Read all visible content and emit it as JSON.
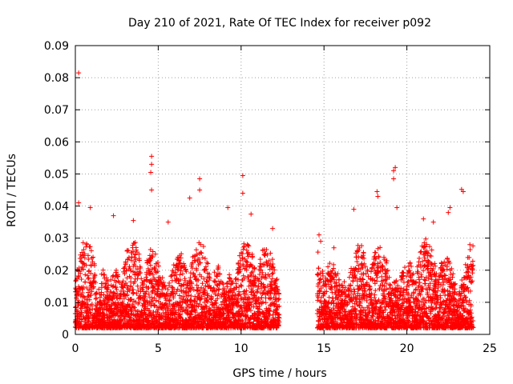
{
  "chart_data": {
    "type": "scatter",
    "title": "Day 210 of 2021, Rate Of TEC Index for receiver p092",
    "xlabel": "GPS time / hours",
    "ylabel": "ROTI / TECUs",
    "xlim": [
      0,
      25
    ],
    "ylim": [
      0,
      0.09
    ],
    "xticks": [
      0,
      5,
      10,
      15,
      20,
      25
    ],
    "yticks": [
      0,
      0.01,
      0.02,
      0.03,
      0.04,
      0.05,
      0.06,
      0.07,
      0.08,
      0.09
    ],
    "xtick_labels": [
      "0",
      "5",
      "10",
      "15",
      "20",
      "25"
    ],
    "ytick_labels": [
      "0",
      "0.01",
      "0.02",
      "0.03",
      "0.04",
      "0.05",
      "0.06",
      "0.07",
      "0.08",
      "0.09"
    ],
    "grid": true,
    "marker": "+",
    "color": "#ff0000",
    "data_gap": [
      12.3,
      14.6
    ],
    "notable_points": [
      {
        "x": 0.2,
        "y": 0.0815
      },
      {
        "x": 4.6,
        "y": 0.0555
      },
      {
        "x": 4.6,
        "y": 0.053
      },
      {
        "x": 4.55,
        "y": 0.0505
      },
      {
        "x": 4.6,
        "y": 0.045
      },
      {
        "x": 10.1,
        "y": 0.0495
      },
      {
        "x": 10.1,
        "y": 0.044
      },
      {
        "x": 7.5,
        "y": 0.0485
      },
      {
        "x": 7.5,
        "y": 0.045
      },
      {
        "x": 19.3,
        "y": 0.052
      },
      {
        "x": 19.2,
        "y": 0.051
      },
      {
        "x": 19.2,
        "y": 0.0485
      },
      {
        "x": 23.3,
        "y": 0.0452
      },
      {
        "x": 23.4,
        "y": 0.0445
      },
      {
        "x": 0.2,
        "y": 0.041
      },
      {
        "x": 0.9,
        "y": 0.0395
      },
      {
        "x": 6.9,
        "y": 0.0425
      },
      {
        "x": 9.2,
        "y": 0.0395
      },
      {
        "x": 10.6,
        "y": 0.0375
      },
      {
        "x": 18.2,
        "y": 0.0445
      },
      {
        "x": 18.25,
        "y": 0.043
      },
      {
        "x": 16.8,
        "y": 0.039
      },
      {
        "x": 19.4,
        "y": 0.0395
      },
      {
        "x": 22.6,
        "y": 0.0395
      },
      {
        "x": 22.5,
        "y": 0.038
      },
      {
        "x": 2.3,
        "y": 0.037
      },
      {
        "x": 3.5,
        "y": 0.0355
      },
      {
        "x": 5.6,
        "y": 0.035
      },
      {
        "x": 11.9,
        "y": 0.033
      },
      {
        "x": 14.7,
        "y": 0.031
      },
      {
        "x": 14.8,
        "y": 0.029
      },
      {
        "x": 15.6,
        "y": 0.027
      },
      {
        "x": 21.0,
        "y": 0.036
      },
      {
        "x": 21.6,
        "y": 0.035
      },
      {
        "x": 23.8,
        "y": 0.028
      }
    ],
    "segments": [
      {
        "x_start": 0.0,
        "x_end": 12.3,
        "y_min": 0.002,
        "typical_max": 0.025
      },
      {
        "x_start": 14.6,
        "x_end": 24.0,
        "y_min": 0.002,
        "typical_max": 0.025
      }
    ]
  }
}
